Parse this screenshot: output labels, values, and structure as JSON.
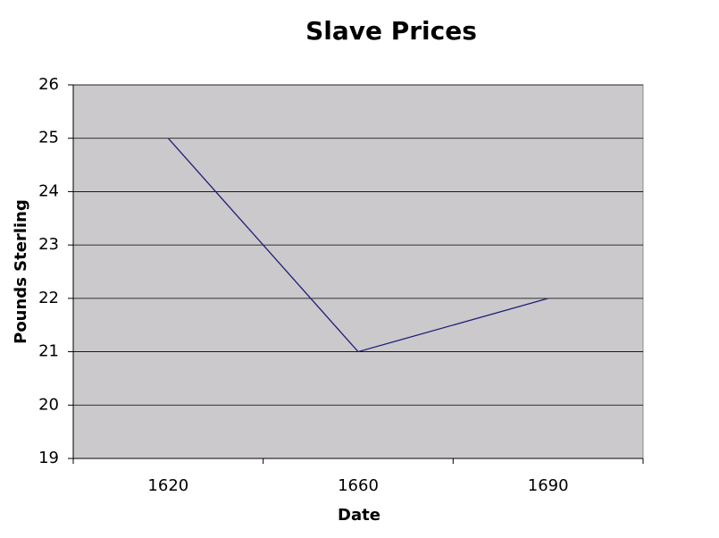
{
  "chart_data": {
    "type": "line",
    "title": "Slave Prices",
    "x_label": "Date",
    "y_label": "Pounds Sterling",
    "categories": [
      "1620",
      "1660",
      "1690"
    ],
    "values": [
      25,
      21,
      22
    ],
    "color": "#1f1f78",
    "ylim": [
      19,
      26
    ],
    "yticks": [
      19,
      20,
      21,
      22,
      23,
      24,
      25,
      26
    ],
    "grid": true
  }
}
